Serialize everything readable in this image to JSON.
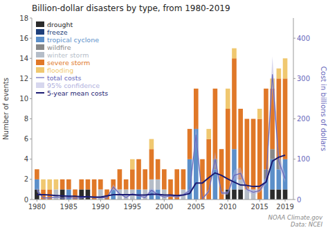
{
  "chart_data": {
    "type": "bar",
    "stacked": true,
    "title": "Billion-dollar disasters by type, from 1980-2019",
    "ylabel": "Number of events",
    "y2label": "Cost in billions of dollars",
    "source": "NOAA Climate.gov\nData: NCEI",
    "x": [
      1980,
      1981,
      1982,
      1983,
      1984,
      1985,
      1986,
      1987,
      1988,
      1989,
      1990,
      1991,
      1992,
      1993,
      1994,
      1995,
      1996,
      1997,
      1998,
      1999,
      2000,
      2001,
      2002,
      2003,
      2004,
      2005,
      2006,
      2007,
      2008,
      2009,
      2010,
      2011,
      2012,
      2013,
      2014,
      2015,
      2016,
      2017,
      2018,
      2019
    ],
    "xlim": [
      1979.2,
      2020.3
    ],
    "xticks": [
      1980,
      1985,
      1990,
      1995,
      2000,
      2005,
      2010,
      2015,
      2019
    ],
    "ylim": [
      0,
      18
    ],
    "yticks": [
      0,
      2,
      4,
      6,
      8,
      10,
      12,
      14,
      16,
      18
    ],
    "y2lim": [
      0,
      450
    ],
    "y2ticks": [
      0,
      100,
      200,
      300,
      400
    ],
    "grid": false,
    "legend": "upper left",
    "series": [
      {
        "name": "drought",
        "color": "#2b2b2b",
        "values": [
          1,
          0,
          0,
          0,
          1,
          0,
          0,
          1,
          1,
          0,
          0,
          0,
          0,
          0,
          0,
          0,
          0,
          0,
          0,
          0,
          0,
          0,
          0,
          0,
          0,
          0,
          0,
          0,
          0,
          0,
          1,
          1,
          1,
          0,
          0,
          0,
          0,
          1,
          1,
          1
        ]
      },
      {
        "name": "freeze",
        "color": "#1e3f7a",
        "values": [
          0,
          0,
          0,
          0,
          0,
          0,
          0,
          0,
          0,
          0,
          0,
          0,
          0,
          0,
          0,
          0,
          0,
          0,
          0,
          0,
          0,
          0,
          0,
          0,
          0,
          0,
          0,
          0,
          0,
          0,
          0,
          0,
          0,
          0,
          0,
          0,
          0,
          0,
          0,
          0
        ]
      },
      {
        "name": "tropical cyclone",
        "color": "#5b8fc9",
        "values": [
          1,
          0,
          0,
          0,
          0,
          1,
          0,
          0,
          0,
          0,
          0,
          0,
          1,
          0,
          0,
          0,
          1,
          0,
          1,
          1,
          0,
          0,
          0,
          0,
          4,
          7,
          0,
          0,
          3,
          0,
          0,
          4,
          0,
          0,
          0,
          0,
          2,
          3,
          2,
          3
        ]
      },
      {
        "name": "wildfire",
        "color": "#888888",
        "values": [
          0,
          0,
          0,
          0,
          0,
          0,
          0,
          0,
          0,
          0,
          0,
          0,
          0,
          0,
          0,
          0,
          0,
          0,
          0,
          0,
          0,
          0,
          0,
          0,
          0,
          0,
          0,
          0,
          1,
          0,
          0,
          0,
          0,
          0,
          0,
          0,
          1,
          1,
          1,
          0
        ]
      },
      {
        "name": "winter storm",
        "color": "#b5bdc8",
        "values": [
          0,
          0,
          0,
          1,
          0,
          0,
          0,
          0,
          0,
          0,
          1,
          0,
          0,
          1,
          1,
          1,
          0,
          1,
          1,
          1,
          1,
          0,
          0,
          1,
          0,
          0,
          0,
          0,
          0,
          0,
          0,
          0,
          1,
          1,
          1,
          0,
          0,
          0,
          0,
          0
        ]
      },
      {
        "name": "severe storm",
        "color": "#e07828",
        "values": [
          1,
          1,
          1,
          0,
          1,
          1,
          1,
          1,
          1,
          2,
          1,
          1,
          1,
          2,
          1,
          2,
          3,
          2,
          3,
          2,
          2,
          2,
          3,
          2,
          3,
          4,
          4,
          6,
          7,
          5,
          8,
          9,
          7,
          7,
          7,
          8,
          8,
          6,
          8,
          8
        ]
      },
      {
        "name": "flooding",
        "color": "#f0c870",
        "values": [
          0,
          1,
          1,
          1,
          0,
          0,
          0,
          0,
          0,
          0,
          0,
          0,
          0,
          0,
          0,
          1,
          0,
          0,
          1,
          0,
          0,
          0,
          0,
          0,
          0,
          0,
          0,
          1,
          0,
          0,
          2,
          1,
          0,
          0,
          0,
          1,
          0,
          1,
          1,
          2
        ]
      },
      {
        "name": "total costs",
        "type": "line",
        "axis": "y2",
        "color": "#6666bb",
        "values": [
          24,
          4,
          4,
          6,
          3,
          5,
          3,
          4,
          7,
          5,
          5,
          4,
          31,
          14,
          5,
          14,
          9,
          5,
          23,
          12,
          6,
          9,
          6,
          12,
          22,
          160,
          2,
          20,
          100,
          16,
          16,
          60,
          65,
          25,
          18,
          22,
          46,
          310,
          95,
          52
        ]
      },
      {
        "name": "95% confidence",
        "type": "band",
        "axis": "y2",
        "color": "#b0b0dd",
        "low": [
          18,
          2,
          2,
          4,
          2,
          3,
          2,
          2,
          5,
          3,
          3,
          3,
          24,
          11,
          3,
          11,
          7,
          3,
          17,
          9,
          4,
          7,
          4,
          9,
          17,
          140,
          1,
          15,
          82,
          12,
          12,
          48,
          52,
          19,
          13,
          17,
          37,
          270,
          78,
          42
        ],
        "high": [
          30,
          6,
          6,
          8,
          5,
          7,
          5,
          6,
          9,
          7,
          7,
          6,
          38,
          17,
          7,
          17,
          11,
          8,
          29,
          15,
          8,
          12,
          8,
          15,
          27,
          185,
          3,
          26,
          118,
          20,
          20,
          73,
          80,
          31,
          23,
          28,
          56,
          355,
          115,
          63
        ]
      },
      {
        "name": "5-year mean costs",
        "type": "line",
        "axis": "y2",
        "color": "#1a1a72",
        "values": [
          12,
          12,
          11,
          10,
          9,
          8,
          8,
          7,
          7,
          6,
          6,
          9,
          12,
          12,
          12,
          12,
          11,
          11,
          13,
          13,
          11,
          11,
          10,
          11,
          15,
          41,
          41,
          54,
          66,
          60,
          51,
          43,
          36,
          35,
          32,
          33,
          43,
          95,
          105,
          110
        ]
      }
    ]
  }
}
